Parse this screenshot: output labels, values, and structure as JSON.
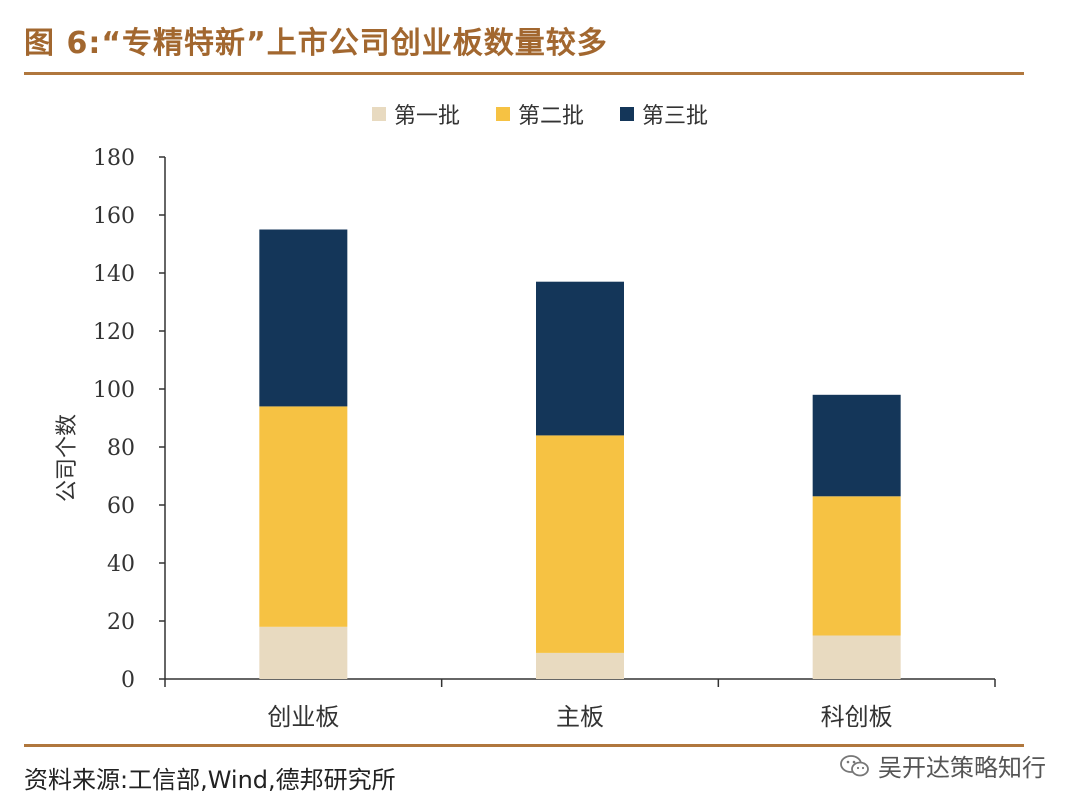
{
  "header": {
    "title": "图 6:“专精特新”上市公司创业板数量较多"
  },
  "source": {
    "text": "资料来源:工信部,Wind,德邦研究所"
  },
  "watermark": {
    "text": "吴开达策略知行",
    "icon": "wechat-icon"
  },
  "colors": {
    "batch1": "#e8dac0",
    "batch2": "#f6c243",
    "batch3": "#143659",
    "rule": "#b0773d",
    "title": "#a2672f"
  },
  "chart_data": {
    "type": "bar",
    "stacked": true,
    "title": "",
    "xlabel": "",
    "ylabel": "公司个数",
    "ylim": [
      0,
      180
    ],
    "yticks": [
      "0",
      "20",
      "40",
      "60",
      "80",
      "100",
      "120",
      "140",
      "160",
      "180"
    ],
    "categories": [
      "创业板",
      "主板",
      "科创板"
    ],
    "series": [
      {
        "name": "第一批",
        "values": [
          18,
          9,
          15
        ],
        "color": "#e8dac0"
      },
      {
        "name": "第二批",
        "values": [
          76,
          75,
          48
        ],
        "color": "#f6c243"
      },
      {
        "name": "第三批",
        "values": [
          61,
          53,
          35
        ],
        "color": "#143659"
      }
    ],
    "legend_position": "top-center"
  }
}
